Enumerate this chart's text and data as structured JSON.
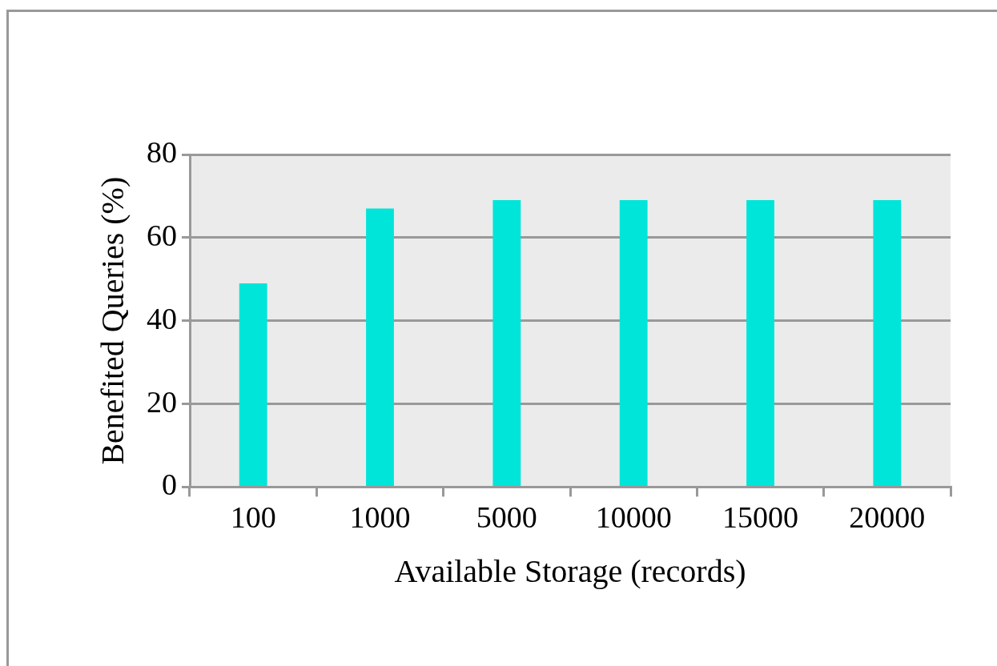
{
  "chart_data": {
    "type": "bar",
    "xlabel": "Available Storage (records)",
    "ylabel": "Benefited Queries (%)",
    "categories": [
      "100",
      "1000",
      "5000",
      "10000",
      "15000",
      "20000"
    ],
    "values": [
      49,
      67,
      69,
      69,
      69,
      69
    ],
    "color": "#00e5d9",
    "ylim": [
      0,
      80
    ],
    "yticks": [
      0,
      20,
      40,
      60,
      80
    ],
    "grid": "y",
    "legend": false
  }
}
